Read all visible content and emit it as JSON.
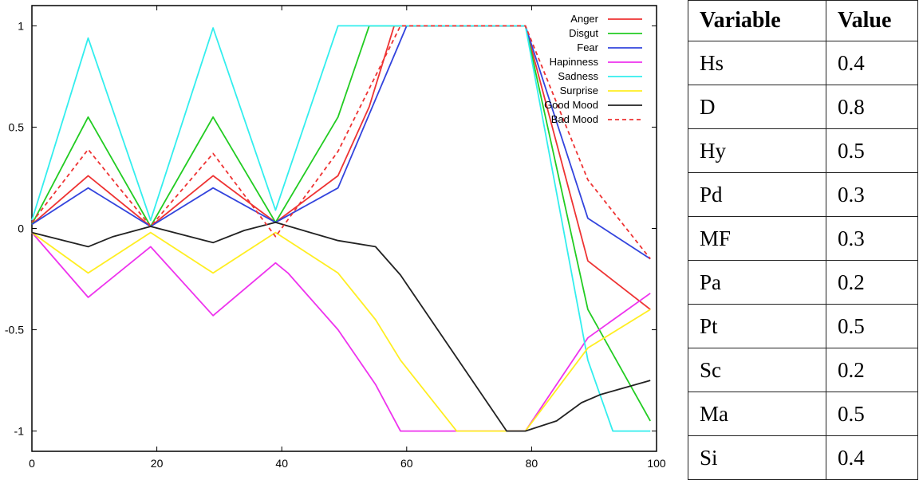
{
  "chart_data": {
    "type": "line",
    "xlim": [
      0,
      100
    ],
    "ylim": [
      -1.1,
      1.1
    ],
    "x_ticks": [
      "0",
      "20",
      "40",
      "60",
      "80",
      "100"
    ],
    "y_ticks": [
      "1",
      "0.5",
      "0",
      "-0.5",
      "-1"
    ],
    "legend_position": "top-right",
    "series": [
      {
        "name": "Anger",
        "color": "#ee3333",
        "dash": false,
        "points": [
          [
            0,
            0.02
          ],
          [
            9,
            0.26
          ],
          [
            19,
            0.01
          ],
          [
            29,
            0.26
          ],
          [
            39,
            0.03
          ],
          [
            49,
            0.26
          ],
          [
            54,
            0.6
          ],
          [
            58,
            1
          ],
          [
            79,
            1
          ],
          [
            89,
            -0.16
          ],
          [
            99,
            -0.4
          ]
        ]
      },
      {
        "name": "Disgut",
        "color": "#22cc22",
        "dash": false,
        "points": [
          [
            0,
            0.02
          ],
          [
            9,
            0.55
          ],
          [
            19,
            0.01
          ],
          [
            29,
            0.55
          ],
          [
            39,
            0.03
          ],
          [
            49,
            0.55
          ],
          [
            54,
            1
          ],
          [
            79,
            1
          ],
          [
            89,
            -0.4
          ],
          [
            99,
            -0.95
          ]
        ]
      },
      {
        "name": "Fear",
        "color": "#3344dd",
        "dash": false,
        "points": [
          [
            0,
            0.02
          ],
          [
            9,
            0.2
          ],
          [
            19,
            0.01
          ],
          [
            29,
            0.2
          ],
          [
            39,
            0.03
          ],
          [
            49,
            0.2
          ],
          [
            60,
            1
          ],
          [
            79,
            1
          ],
          [
            89,
            0.05
          ],
          [
            99,
            -0.15
          ]
        ]
      },
      {
        "name": "Hapinness",
        "color": "#ee33ee",
        "dash": false,
        "points": [
          [
            0,
            -0.02
          ],
          [
            9,
            -0.34
          ],
          [
            19,
            -0.09
          ],
          [
            29,
            -0.43
          ],
          [
            39,
            -0.17
          ],
          [
            41,
            -0.22
          ],
          [
            49,
            -0.5
          ],
          [
            55,
            -0.77
          ],
          [
            59,
            -1
          ],
          [
            79,
            -1
          ],
          [
            89,
            -0.54
          ],
          [
            99,
            -0.32
          ]
        ]
      },
      {
        "name": "Sadness",
        "color": "#33eeee",
        "dash": false,
        "points": [
          [
            0,
            0.04
          ],
          [
            9,
            0.94
          ],
          [
            19,
            0.04
          ],
          [
            29,
            0.99
          ],
          [
            39,
            0.09
          ],
          [
            49,
            1
          ],
          [
            79,
            1
          ],
          [
            89,
            -0.65
          ],
          [
            93,
            -1
          ],
          [
            99,
            -1
          ]
        ]
      },
      {
        "name": "Surprise",
        "color": "#ffee22",
        "dash": false,
        "points": [
          [
            0,
            -0.02
          ],
          [
            9,
            -0.22
          ],
          [
            19,
            -0.02
          ],
          [
            29,
            -0.22
          ],
          [
            39,
            -0.02
          ],
          [
            49,
            -0.22
          ],
          [
            55,
            -0.45
          ],
          [
            59,
            -0.65
          ],
          [
            68,
            -1
          ],
          [
            79,
            -1
          ],
          [
            89,
            -0.59
          ],
          [
            99,
            -0.4
          ]
        ]
      },
      {
        "name": "Good Mood",
        "color": "#222222",
        "dash": false,
        "points": [
          [
            0,
            -0.02
          ],
          [
            9,
            -0.09
          ],
          [
            13,
            -0.04
          ],
          [
            19,
            0.01
          ],
          [
            29,
            -0.07
          ],
          [
            34,
            -0.01
          ],
          [
            39,
            0.03
          ],
          [
            49,
            -0.06
          ],
          [
            55,
            -0.09
          ],
          [
            59,
            -0.23
          ],
          [
            76,
            -1
          ],
          [
            79,
            -1
          ],
          [
            84,
            -0.95
          ],
          [
            88,
            -0.86
          ],
          [
            91,
            -0.82
          ],
          [
            99,
            -0.75
          ]
        ]
      },
      {
        "name": "Bad Mood",
        "color": "#ee3333",
        "dash": true,
        "points": [
          [
            0,
            0.03
          ],
          [
            9,
            0.39
          ],
          [
            19,
            0.01
          ],
          [
            29,
            0.37
          ],
          [
            39,
            -0.04
          ],
          [
            49,
            0.38
          ],
          [
            59,
            1
          ],
          [
            79,
            1
          ],
          [
            89,
            0.24
          ],
          [
            99,
            -0.15
          ]
        ]
      }
    ]
  },
  "table": {
    "headers": [
      "Variable",
      "Value"
    ],
    "rows": [
      [
        "Hs",
        "0.4"
      ],
      [
        "D",
        "0.8"
      ],
      [
        "Hy",
        "0.5"
      ],
      [
        "Pd",
        "0.3"
      ],
      [
        "MF",
        "0.3"
      ],
      [
        "Pa",
        "0.2"
      ],
      [
        "Pt",
        "0.5"
      ],
      [
        "Sc",
        "0.2"
      ],
      [
        "Ma",
        "0.5"
      ],
      [
        "Si",
        "0.4"
      ]
    ]
  }
}
